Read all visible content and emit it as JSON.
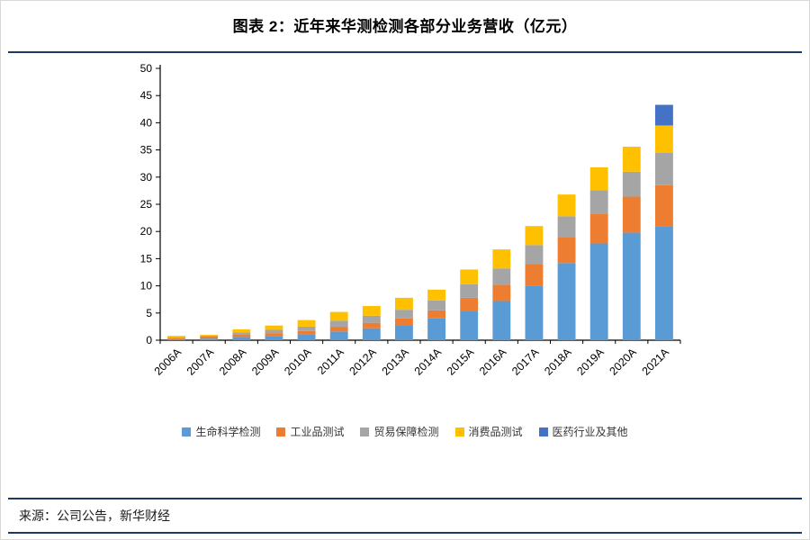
{
  "title": "图表 2：近年来华测检测各部分业务营收（亿元）",
  "source": "来源：公司公告，新华财经",
  "colors": {
    "divider": "#1F3864",
    "axis": "#000000",
    "tick_label": "#000000"
  },
  "chart_data": {
    "type": "bar",
    "stacked": true,
    "title": "图表 2：近年来华测检测各部分业务营收（亿元）",
    "xlabel": "",
    "ylabel": "",
    "ylim": [
      0,
      50
    ],
    "ytick_step": 5,
    "grid": false,
    "legend_position": "bottom",
    "categories": [
      "2006A",
      "2007A",
      "2008A",
      "2009A",
      "2010A",
      "2011A",
      "2012A",
      "2013A",
      "2014A",
      "2015A",
      "2016A",
      "2017A",
      "2018A",
      "2019A",
      "2020A",
      "2021A"
    ],
    "series": [
      {
        "name": "生命科学检测",
        "color": "#5B9BD5",
        "values": [
          0.2,
          0.3,
          0.6,
          0.8,
          1.1,
          1.6,
          2.2,
          2.8,
          4.0,
          5.3,
          7.2,
          10.0,
          14.2,
          17.8,
          19.8,
          21.0
        ]
      },
      {
        "name": "工业品测试",
        "color": "#ED7D31",
        "values": [
          0.2,
          0.4,
          0.4,
          0.5,
          0.6,
          0.8,
          1.0,
          1.2,
          1.5,
          2.5,
          3.0,
          4.0,
          4.8,
          5.5,
          6.6,
          7.5
        ]
      },
      {
        "name": "贸易保障检测",
        "color": "#A5A5A5",
        "values": [
          0.1,
          0.15,
          0.4,
          0.6,
          0.8,
          1.2,
          1.3,
          1.6,
          1.8,
          2.5,
          3.0,
          3.5,
          3.8,
          4.3,
          4.6,
          6.0
        ]
      },
      {
        "name": "消费品测试",
        "color": "#FFC000",
        "values": [
          0.3,
          0.15,
          0.6,
          0.8,
          1.2,
          1.6,
          1.8,
          2.2,
          2.0,
          2.7,
          3.5,
          3.5,
          4.0,
          4.2,
          4.6,
          5.0
        ]
      },
      {
        "name": "医药行业及其他",
        "color": "#4472C4",
        "values": [
          0,
          0,
          0,
          0,
          0,
          0,
          0,
          0,
          0,
          0,
          0,
          0,
          0,
          0,
          0,
          3.8
        ]
      }
    ]
  }
}
